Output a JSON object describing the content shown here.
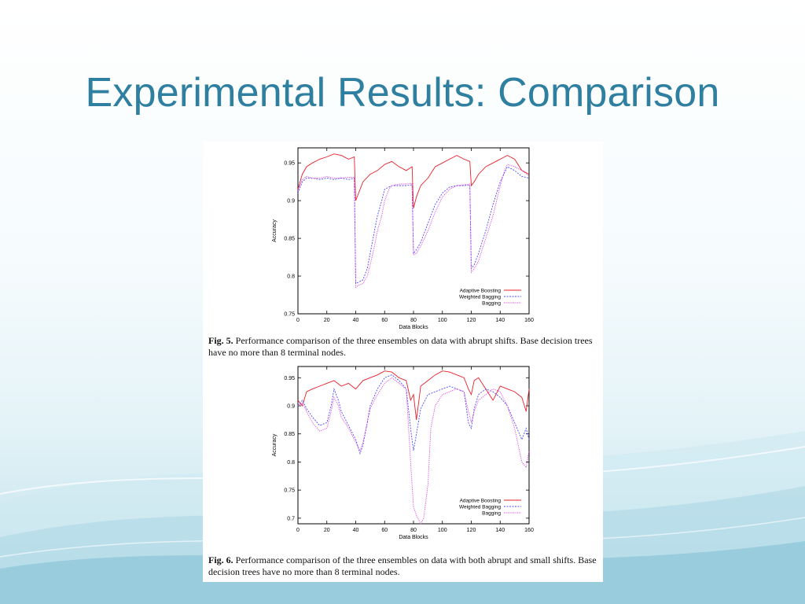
{
  "slide": {
    "title": "Experimental Results: Comparison"
  },
  "captions": [
    {
      "label": "Fig. 5.",
      "text": "Performance comparison of the three ensembles on data with abrupt shifts. Base decision trees have no more than 8 terminal nodes."
    },
    {
      "label": "Fig. 6.",
      "text": "Performance comparison of the three ensembles on data with both abrupt and small shifts. Base decision trees have no more than 8 terminal nodes."
    }
  ],
  "colors": {
    "title": "#2e7fa0",
    "adaptive": "#e8202a",
    "weighted": "#4a4aff",
    "bagging": "#e040e0"
  },
  "chart_data": [
    {
      "type": "line",
      "xlabel": "Data Blocks",
      "ylabel": "Accuracy",
      "xlim": [
        0,
        160
      ],
      "ylim": [
        0.75,
        0.97
      ],
      "xticks": [
        0,
        20,
        40,
        60,
        80,
        100,
        120,
        140,
        160
      ],
      "yticks": [
        0.75,
        0.8,
        0.85,
        0.9,
        0.95
      ],
      "legend": "bottom-right",
      "series": [
        {
          "name": "Adaptive Boosting",
          "x": [
            0,
            3,
            6,
            10,
            15,
            20,
            25,
            30,
            35,
            39,
            40,
            42,
            45,
            50,
            55,
            60,
            65,
            70,
            75,
            79,
            80,
            82,
            85,
            90,
            95,
            100,
            105,
            110,
            115,
            119,
            120,
            122,
            125,
            130,
            135,
            140,
            145,
            150,
            155,
            160
          ],
          "y": [
            0.915,
            0.935,
            0.945,
            0.95,
            0.955,
            0.958,
            0.962,
            0.96,
            0.955,
            0.958,
            0.9,
            0.91,
            0.925,
            0.935,
            0.94,
            0.948,
            0.952,
            0.945,
            0.94,
            0.945,
            0.89,
            0.905,
            0.92,
            0.93,
            0.945,
            0.95,
            0.955,
            0.96,
            0.955,
            0.952,
            0.92,
            0.925,
            0.935,
            0.945,
            0.95,
            0.955,
            0.96,
            0.955,
            0.94,
            0.935
          ]
        },
        {
          "name": "Weighted Bagging",
          "x": [
            0,
            3,
            6,
            10,
            15,
            20,
            25,
            30,
            35,
            39,
            40,
            42,
            45,
            48,
            50,
            53,
            55,
            58,
            60,
            65,
            70,
            75,
            79,
            80,
            82,
            85,
            90,
            95,
            100,
            105,
            110,
            115,
            119,
            120,
            122,
            125,
            130,
            135,
            140,
            145,
            150,
            155,
            160
          ],
          "y": [
            0.91,
            0.925,
            0.93,
            0.93,
            0.928,
            0.93,
            0.928,
            0.93,
            0.928,
            0.93,
            0.79,
            0.792,
            0.795,
            0.81,
            0.83,
            0.86,
            0.88,
            0.9,
            0.915,
            0.92,
            0.92,
            0.92,
            0.921,
            0.83,
            0.835,
            0.845,
            0.87,
            0.895,
            0.91,
            0.918,
            0.92,
            0.92,
            0.921,
            0.81,
            0.815,
            0.83,
            0.86,
            0.895,
            0.925,
            0.945,
            0.94,
            0.932,
            0.93
          ]
        },
        {
          "name": "Bagging",
          "x": [
            0,
            3,
            6,
            10,
            15,
            20,
            25,
            30,
            35,
            39,
            40,
            42,
            45,
            48,
            50,
            53,
            55,
            58,
            60,
            63,
            65,
            70,
            75,
            79,
            80,
            82,
            85,
            90,
            95,
            100,
            105,
            110,
            115,
            119,
            120,
            122,
            125,
            130,
            135,
            140,
            143,
            145,
            150,
            155,
            160
          ],
          "y": [
            0.913,
            0.928,
            0.932,
            0.93,
            0.93,
            0.932,
            0.93,
            0.93,
            0.931,
            0.931,
            0.785,
            0.788,
            0.79,
            0.8,
            0.815,
            0.84,
            0.86,
            0.88,
            0.9,
            0.915,
            0.92,
            0.922,
            0.922,
            0.923,
            0.828,
            0.83,
            0.84,
            0.86,
            0.885,
            0.905,
            0.915,
            0.92,
            0.921,
            0.922,
            0.805,
            0.81,
            0.82,
            0.85,
            0.88,
            0.92,
            0.94,
            0.948,
            0.945,
            0.94,
            0.933
          ]
        }
      ]
    },
    {
      "type": "line",
      "xlabel": "Data Blocks",
      "ylabel": "Accuracy",
      "xlim": [
        0,
        160
      ],
      "ylim": [
        0.69,
        0.97
      ],
      "xticks": [
        0,
        20,
        40,
        60,
        80,
        100,
        120,
        140,
        160
      ],
      "yticks": [
        0.7,
        0.75,
        0.8,
        0.85,
        0.9,
        0.95
      ],
      "legend": "bottom-right",
      "series": [
        {
          "name": "Adaptive Boosting",
          "x": [
            0,
            3,
            6,
            10,
            15,
            20,
            25,
            30,
            35,
            40,
            45,
            50,
            55,
            60,
            65,
            70,
            75,
            78,
            80,
            82,
            85,
            90,
            95,
            100,
            105,
            110,
            115,
            118,
            120,
            122,
            125,
            130,
            135,
            140,
            145,
            150,
            155,
            158,
            160
          ],
          "y": [
            0.91,
            0.9,
            0.925,
            0.93,
            0.935,
            0.94,
            0.945,
            0.935,
            0.94,
            0.93,
            0.945,
            0.95,
            0.955,
            0.962,
            0.96,
            0.95,
            0.945,
            0.91,
            0.92,
            0.875,
            0.935,
            0.945,
            0.955,
            0.962,
            0.96,
            0.955,
            0.95,
            0.93,
            0.92,
            0.945,
            0.95,
            0.93,
            0.91,
            0.935,
            0.93,
            0.925,
            0.915,
            0.89,
            0.93
          ]
        },
        {
          "name": "Weighted Bagging",
          "x": [
            0,
            3,
            6,
            10,
            15,
            20,
            23,
            25,
            28,
            30,
            35,
            40,
            43,
            45,
            48,
            50,
            55,
            60,
            65,
            70,
            75,
            78,
            80,
            82,
            85,
            90,
            95,
            100,
            105,
            110,
            115,
            118,
            120,
            122,
            125,
            130,
            135,
            140,
            145,
            150,
            155,
            158,
            160
          ],
          "y": [
            0.9,
            0.91,
            0.895,
            0.88,
            0.865,
            0.87,
            0.9,
            0.93,
            0.91,
            0.89,
            0.865,
            0.84,
            0.815,
            0.83,
            0.87,
            0.9,
            0.93,
            0.95,
            0.955,
            0.945,
            0.93,
            0.86,
            0.82,
            0.85,
            0.895,
            0.92,
            0.925,
            0.93,
            0.935,
            0.93,
            0.925,
            0.87,
            0.86,
            0.895,
            0.92,
            0.93,
            0.925,
            0.915,
            0.9,
            0.87,
            0.84,
            0.86,
            0.84
          ]
        },
        {
          "name": "Bagging",
          "x": [
            0,
            3,
            6,
            10,
            15,
            20,
            23,
            25,
            28,
            30,
            35,
            40,
            43,
            45,
            48,
            50,
            55,
            60,
            65,
            70,
            75,
            78,
            80,
            82,
            85,
            87,
            90,
            92,
            95,
            100,
            105,
            110,
            115,
            118,
            120,
            122,
            125,
            130,
            135,
            140,
            145,
            150,
            155,
            158,
            160
          ],
          "y": [
            0.9,
            0.905,
            0.89,
            0.87,
            0.855,
            0.86,
            0.89,
            0.915,
            0.9,
            0.88,
            0.86,
            0.835,
            0.82,
            0.835,
            0.87,
            0.895,
            0.92,
            0.94,
            0.95,
            0.94,
            0.93,
            0.8,
            0.72,
            0.705,
            0.69,
            0.7,
            0.76,
            0.86,
            0.9,
            0.92,
            0.925,
            0.93,
            0.925,
            0.89,
            0.87,
            0.89,
            0.91,
            0.92,
            0.93,
            0.925,
            0.9,
            0.86,
            0.8,
            0.79,
            0.82
          ]
        }
      ]
    }
  ]
}
